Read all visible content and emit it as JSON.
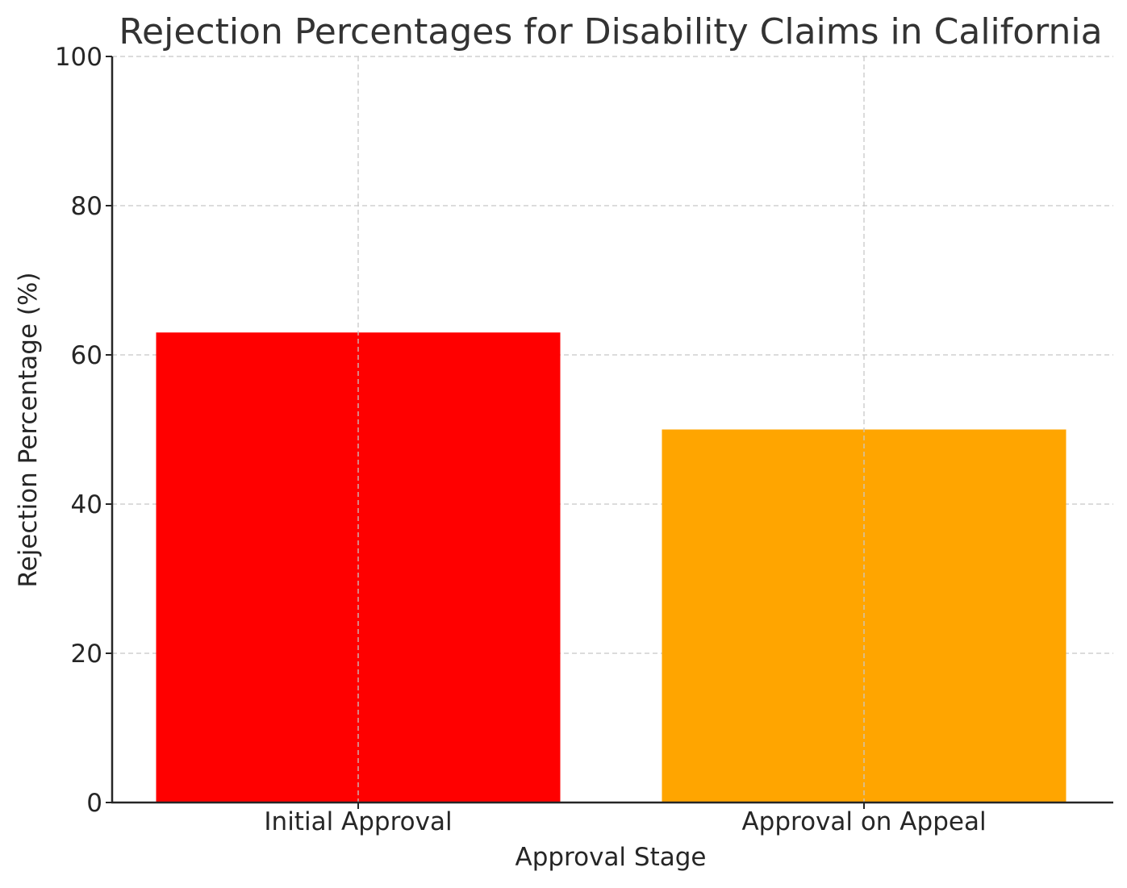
{
  "chart_data": {
    "type": "bar",
    "title": "Rejection Percentages for Disability Claims in California",
    "xlabel": "Approval Stage",
    "ylabel": "Rejection Percentage (%)",
    "categories": [
      "Initial Approval",
      "Approval on Appeal"
    ],
    "values": [
      63,
      50
    ],
    "colors": [
      "#ff0000",
      "#ffa500"
    ],
    "ylim": [
      0,
      100
    ],
    "yticks": [
      0,
      20,
      40,
      60,
      80,
      100
    ],
    "grid": true
  }
}
